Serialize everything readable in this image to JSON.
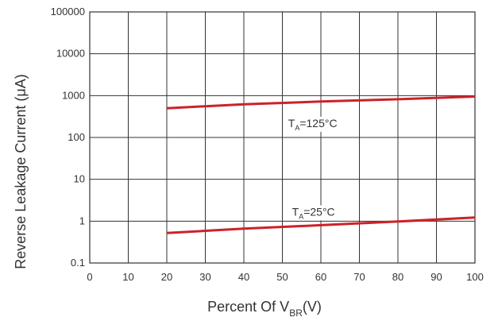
{
  "chart_data": {
    "type": "line",
    "title": "",
    "xlabel_main": "Percent Of V",
    "xlabel_sub": "BR",
    "xlabel_end": "(V)",
    "ylabel": "Reverse Leakage Current (μA)",
    "x_scale": "linear",
    "y_scale": "log",
    "xlim": [
      0,
      100
    ],
    "ylim": [
      0.1,
      100000
    ],
    "grid": true,
    "legend": "none",
    "x_ticks": [
      0,
      10,
      20,
      30,
      40,
      50,
      60,
      70,
      80,
      90,
      100
    ],
    "x_tick_labels": [
      "0",
      "10",
      "20",
      "30",
      "40",
      "50",
      "60",
      "70",
      "80",
      "90",
      "100"
    ],
    "y_ticks": [
      0.1,
      1,
      10,
      100,
      1000,
      10000,
      100000
    ],
    "y_tick_labels": [
      "0.1",
      "1",
      "10",
      "100",
      "1000",
      "10000",
      "100000"
    ],
    "series": [
      {
        "label_main": "T",
        "label_sub": "A",
        "label_end": "=125°C",
        "color": "#cc2229",
        "x": [
          20,
          40,
          60,
          80,
          100
        ],
        "y": [
          500,
          620,
          720,
          820,
          950
        ]
      },
      {
        "label_main": "T",
        "label_sub": "A",
        "label_end": "=25°C",
        "color": "#cc2229",
        "x": [
          20,
          40,
          60,
          80,
          100
        ],
        "y": [
          0.52,
          0.66,
          0.8,
          0.98,
          1.22
        ]
      }
    ]
  }
}
